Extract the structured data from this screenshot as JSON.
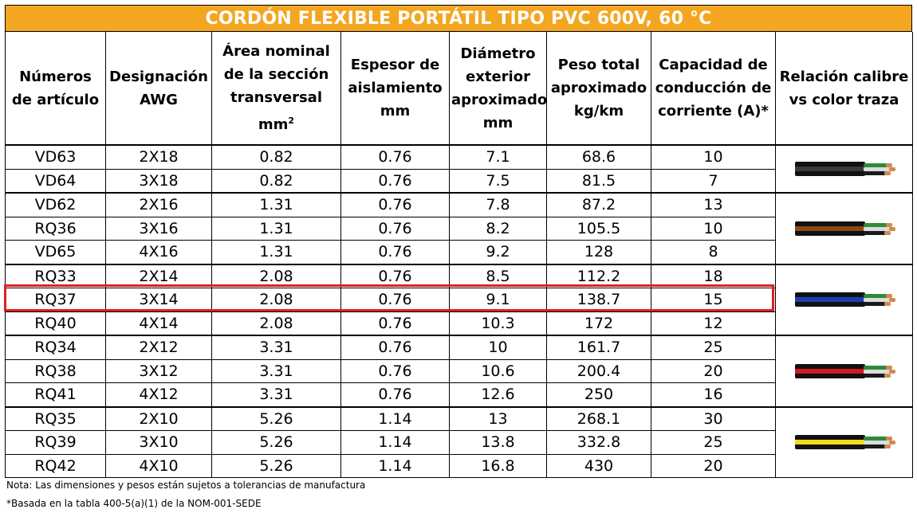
{
  "title": "CORDÓN FLEXIBLE PORTÁTIL TIPO PVC 600V, 60 °C",
  "headers": {
    "articulo": "Números de artículo",
    "awg": "Designación AWG",
    "area": "Área nominal de la sección transversal",
    "area_unit": "mm",
    "area_sup": "2",
    "espesor": "Espesor de aislamiento mm",
    "diametro": "Diámetro exterior aproximado mm",
    "peso": "Peso total aproximado kg/km",
    "capacidad": "Capacidad de conducción de corriente (A)*",
    "relacion": "Relación calibre vs color traza"
  },
  "rows": [
    {
      "articulo": "VD63",
      "awg": "2X18",
      "area": "0.82",
      "espesor": "0.76",
      "diametro": "7.1",
      "peso": "68.6",
      "capacidad": "10"
    },
    {
      "articulo": "VD64",
      "awg": "3X18",
      "area": "0.82",
      "espesor": "0.76",
      "diametro": "7.5",
      "peso": "81.5",
      "capacidad": "7"
    },
    {
      "articulo": "VD62",
      "awg": "2X16",
      "area": "1.31",
      "espesor": "0.76",
      "diametro": "7.8",
      "peso": "87.2",
      "capacidad": "13"
    },
    {
      "articulo": "RQ36",
      "awg": "3X16",
      "area": "1.31",
      "espesor": "0.76",
      "diametro": "8.2",
      "peso": "105.5",
      "capacidad": "10"
    },
    {
      "articulo": "VD65",
      "awg": "4X16",
      "area": "1.31",
      "espesor": "0.76",
      "diametro": "9.2",
      "peso": "128",
      "capacidad": "8"
    },
    {
      "articulo": "RQ33",
      "awg": "2X14",
      "area": "2.08",
      "espesor": "0.76",
      "diametro": "8.5",
      "peso": "112.2",
      "capacidad": "18"
    },
    {
      "articulo": "RQ37",
      "awg": "3X14",
      "area": "2.08",
      "espesor": "0.76",
      "diametro": "9.1",
      "peso": "138.7",
      "capacidad": "15"
    },
    {
      "articulo": "RQ40",
      "awg": "4X14",
      "area": "2.08",
      "espesor": "0.76",
      "diametro": "10.3",
      "peso": "172",
      "capacidad": "12"
    },
    {
      "articulo": "RQ34",
      "awg": "2X12",
      "area": "3.31",
      "espesor": "0.76",
      "diametro": "10",
      "peso": "161.7",
      "capacidad": "25"
    },
    {
      "articulo": "RQ38",
      "awg": "3X12",
      "area": "3.31",
      "espesor": "0.76",
      "diametro": "10.6",
      "peso": "200.4",
      "capacidad": "20"
    },
    {
      "articulo": "RQ41",
      "awg": "4X12",
      "area": "3.31",
      "espesor": "0.76",
      "diametro": "12.6",
      "peso": "250",
      "capacidad": "16"
    },
    {
      "articulo": "RQ35",
      "awg": "2X10",
      "area": "5.26",
      "espesor": "1.14",
      "diametro": "13",
      "peso": "268.1",
      "capacidad": "30"
    },
    {
      "articulo": "RQ39",
      "awg": "3X10",
      "area": "5.26",
      "espesor": "1.14",
      "diametro": "13.8",
      "peso": "332.8",
      "capacidad": "25"
    },
    {
      "articulo": "RQ42",
      "awg": "4X10",
      "area": "5.26",
      "espesor": "1.14",
      "diametro": "16.8",
      "peso": "430",
      "capacidad": "20"
    }
  ],
  "cable_colors": [
    {
      "gauge": "18 AWG",
      "stripe": "#3a3a3a"
    },
    {
      "gauge": "16 AWG",
      "stripe": "#8b4a14"
    },
    {
      "gauge": "14 AWG",
      "stripe": "#1f3fb0"
    },
    {
      "gauge": "12 AWG",
      "stripe": "#d21a24"
    },
    {
      "gauge": "10 AWG",
      "stripe": "#f2dc18"
    }
  ],
  "colors": {
    "title_bg": "#f4a620",
    "highlight": "#e02020"
  },
  "highlighted_row": "RQ37",
  "notes": {
    "note1": "Nota: Las dimensiones y pesos están sujetos a tolerancias de manufactura",
    "note2": "*Basada en la tabla 400-5(a)(1) de la NOM-001-SEDE"
  }
}
